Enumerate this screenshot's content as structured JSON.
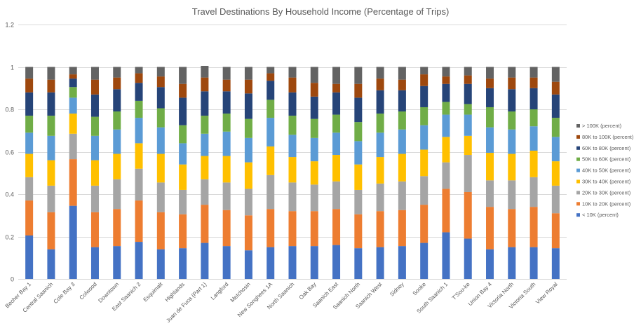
{
  "colors": {
    "background": "#ffffff",
    "grid": "#d9d9d9",
    "axis_text": "#595959",
    "series": [
      "#4472c4",
      "#ed7d31",
      "#a5a5a5",
      "#ffc000",
      "#5b9bd5",
      "#70ad47",
      "#264478",
      "#9e480e",
      "#636363"
    ]
  },
  "chart_data": {
    "type": "bar",
    "stacked": true,
    "title": "Travel Destinations By Household Income (Percentage of Trips)",
    "xlabel": "",
    "ylabel": "",
    "ylim": [
      0,
      1.2
    ],
    "yticks": [
      0,
      0.2,
      0.4,
      0.6,
      0.8,
      1,
      1.2
    ],
    "ytick_labels": [
      "0",
      "0.2",
      "0.4",
      "0.6",
      "0.8",
      "1",
      "1.2"
    ],
    "grid": true,
    "legend_position": "right",
    "categories": [
      "Becher Bay 1",
      "Central Saanich",
      "Cole Bay 3",
      "Colwood",
      "Downtown",
      "East Saanich 2",
      "Esquimalt",
      "Highlands",
      "Juan de Fuca (Part 1)",
      "Langford",
      "Metchosin",
      "New Songhees 1A",
      "North Saanich",
      "Oak Bay",
      "Saanich East",
      "Saanich North",
      "Saanich West",
      "Sidney",
      "Sooke",
      "South Saanich 1",
      "T'Sou-ke",
      "Union Bay 4",
      "Victoria North",
      "Victoria South",
      "View Royal"
    ],
    "series": [
      {
        "name": "< 10K (percent)",
        "values": [
          0.205,
          0.14,
          0.345,
          0.15,
          0.155,
          0.175,
          0.14,
          0.145,
          0.17,
          0.155,
          0.135,
          0.15,
          0.155,
          0.155,
          0.16,
          0.145,
          0.15,
          0.155,
          0.17,
          0.22,
          0.19,
          0.14,
          0.15,
          0.15,
          0.145
        ]
      },
      {
        "name": "10K to 20K (percent)",
        "values": [
          0.165,
          0.175,
          0.22,
          0.165,
          0.175,
          0.195,
          0.175,
          0.16,
          0.18,
          0.17,
          0.165,
          0.18,
          0.165,
          0.165,
          0.17,
          0.16,
          0.17,
          0.17,
          0.18,
          0.205,
          0.22,
          0.2,
          0.18,
          0.19,
          0.165
        ]
      },
      {
        "name": "20K to 30K (percent)",
        "values": [
          0.11,
          0.125,
          0.12,
          0.125,
          0.14,
          0.15,
          0.14,
          0.115,
          0.12,
          0.13,
          0.125,
          0.16,
          0.135,
          0.125,
          0.13,
          0.115,
          0.13,
          0.135,
          0.135,
          0.125,
          0.175,
          0.125,
          0.135,
          0.14,
          0.13
        ]
      },
      {
        "name": "30K to 40K (percent)",
        "values": [
          0.11,
          0.12,
          0.095,
          0.12,
          0.12,
          0.12,
          0.135,
          0.12,
          0.11,
          0.125,
          0.125,
          0.135,
          0.12,
          0.11,
          0.125,
          0.12,
          0.125,
          0.13,
          0.125,
          0.12,
          0.09,
          0.13,
          0.125,
          0.125,
          0.115
        ]
      },
      {
        "name": "40K to 50K (percent)",
        "values": [
          0.1,
          0.115,
          0.075,
          0.115,
          0.115,
          0.12,
          0.125,
          0.1,
          0.105,
          0.115,
          0.115,
          0.135,
          0.105,
          0.11,
          0.105,
          0.11,
          0.115,
          0.115,
          0.115,
          0.105,
          0.1,
          0.12,
          0.115,
          0.115,
          0.115
        ]
      },
      {
        "name": "50K to 60K (percent)",
        "values": [
          0.08,
          0.095,
          0.05,
          0.09,
          0.085,
          0.08,
          0.09,
          0.085,
          0.085,
          0.085,
          0.09,
          0.085,
          0.09,
          0.09,
          0.085,
          0.09,
          0.09,
          0.085,
          0.085,
          0.06,
          0.05,
          0.095,
          0.085,
          0.08,
          0.09
        ]
      },
      {
        "name": "60K to 80K (percent)",
        "values": [
          0.11,
          0.11,
          0.04,
          0.105,
          0.105,
          0.085,
          0.1,
          0.13,
          0.115,
          0.105,
          0.12,
          0.09,
          0.11,
          0.105,
          0.105,
          0.115,
          0.11,
          0.1,
          0.1,
          0.085,
          0.095,
          0.09,
          0.105,
          0.1,
          0.11
        ]
      },
      {
        "name": "80K to 100K (percent)",
        "values": [
          0.065,
          0.06,
          0.02,
          0.07,
          0.055,
          0.045,
          0.05,
          0.065,
          0.065,
          0.055,
          0.065,
          0.035,
          0.07,
          0.065,
          0.04,
          0.065,
          0.055,
          0.05,
          0.055,
          0.035,
          0.04,
          0.045,
          0.055,
          0.05,
          0.06
        ]
      },
      {
        "name": "> 100K (percent)",
        "values": [
          0.055,
          0.06,
          0.035,
          0.06,
          0.05,
          0.03,
          0.045,
          0.08,
          0.055,
          0.06,
          0.06,
          0.03,
          0.05,
          0.075,
          0.08,
          0.08,
          0.055,
          0.06,
          0.035,
          0.045,
          0.04,
          0.055,
          0.05,
          0.05,
          0.07
        ]
      }
    ]
  }
}
